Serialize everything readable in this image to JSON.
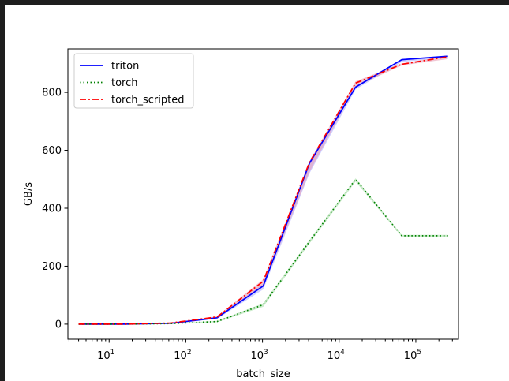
{
  "chart_data": {
    "type": "line",
    "xlabel": "batch_size",
    "ylabel": "GB/s",
    "xscale": "log",
    "xlim": [
      2.9,
      360000
    ],
    "ylim": [
      -52,
      950
    ],
    "x_ticks": [
      {
        "value": 10,
        "base": "10",
        "exp": "1"
      },
      {
        "value": 100,
        "base": "10",
        "exp": "2"
      },
      {
        "value": 1000,
        "base": "10",
        "exp": "3"
      },
      {
        "value": 10000,
        "base": "10",
        "exp": "4"
      },
      {
        "value": 100000,
        "base": "10",
        "exp": "5"
      }
    ],
    "y_ticks": [
      0,
      200,
      400,
      600,
      800
    ],
    "grid": false,
    "legend_position": "upper-left",
    "x": [
      4,
      16,
      64,
      256,
      1024,
      4096,
      16384,
      65536,
      262144
    ],
    "series": [
      {
        "name": "triton",
        "color": "#0000ff",
        "style": "solid",
        "values": [
          0,
          0,
          3,
          22,
          132,
          555,
          818,
          913,
          925
        ],
        "band_low": [
          0,
          0,
          2,
          18,
          120,
          520,
          810,
          905,
          920
        ],
        "band_high": [
          0,
          0,
          4,
          25,
          140,
          560,
          822,
          915,
          927
        ],
        "band_color": "#b0b0ff"
      },
      {
        "name": "torch",
        "color": "#008000",
        "style": "dotted",
        "values": [
          0,
          0,
          2,
          9,
          67,
          285,
          500,
          305,
          305
        ],
        "band_low": [
          0,
          0,
          1,
          7,
          60,
          278,
          492,
          302,
          302
        ],
        "band_high": [
          0,
          0,
          3,
          11,
          72,
          290,
          503,
          308,
          308
        ],
        "band_color": "#a8e0a8"
      },
      {
        "name": "torch_scripted",
        "color": "#ff0000",
        "style": "dashdot",
        "values": [
          0,
          0,
          4,
          25,
          148,
          558,
          832,
          897,
          923
        ],
        "band_low": [
          0,
          0,
          2,
          20,
          130,
          525,
          820,
          893,
          915
        ],
        "band_high": [
          0,
          0,
          5,
          27,
          155,
          562,
          838,
          900,
          927
        ],
        "band_color": "#e8a0b8"
      }
    ]
  }
}
